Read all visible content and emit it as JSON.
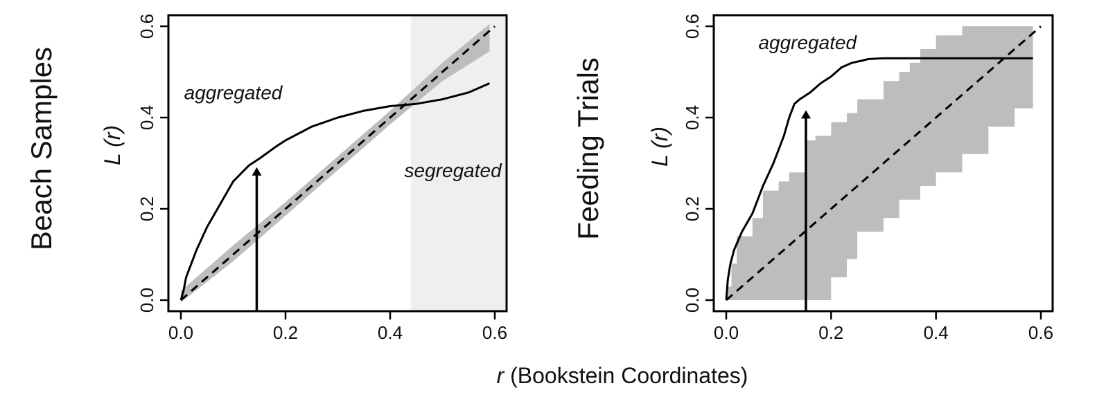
{
  "figure": {
    "xlabel_var": "r",
    "xlabel_rest": " (Bookstein Coordinates)",
    "ylabel_prefix": "L (",
    "ylabel_var": "r",
    "ylabel_suffix": ")"
  },
  "colors": {
    "line": "#000000",
    "envelope": "#bdbdbd",
    "shade": "#efefef"
  },
  "chart_data": [
    {
      "type": "line",
      "row_title": "Beach Samples",
      "xlim": [
        0,
        0.6
      ],
      "ylim": [
        0,
        0.6
      ],
      "xticks": [
        "0.0",
        "0.2",
        "0.4",
        "0.6"
      ],
      "yticks": [
        "0.0",
        "0.2",
        "0.4",
        "0.6"
      ],
      "shaded_region_x": [
        0.44,
        0.62
      ],
      "annotations": [
        {
          "text": "aggregated",
          "x": 0.1,
          "y": 0.44
        },
        {
          "text": "segregated",
          "x": 0.52,
          "y": 0.27
        }
      ],
      "arrow": {
        "x": 0.145,
        "y_from": -0.03,
        "y_to": 0.285
      },
      "series": [
        {
          "role": "observed",
          "x": [
            0,
            0.005,
            0.01,
            0.02,
            0.03,
            0.05,
            0.07,
            0.1,
            0.13,
            0.15,
            0.18,
            0.2,
            0.25,
            0.3,
            0.35,
            0.4,
            0.45,
            0.5,
            0.55,
            0.59
          ],
          "y": [
            0,
            0.02,
            0.05,
            0.08,
            0.11,
            0.16,
            0.2,
            0.26,
            0.295,
            0.31,
            0.335,
            0.35,
            0.38,
            0.4,
            0.415,
            0.425,
            0.43,
            0.44,
            0.455,
            0.475
          ]
        },
        {
          "role": "expected",
          "x": [
            0,
            0.6
          ],
          "y": [
            0,
            0.6
          ]
        },
        {
          "role": "envelope",
          "x": [
            0,
            0.1,
            0.2,
            0.3,
            0.4,
            0.5,
            0.59
          ],
          "y_lower": [
            -0.005,
            0.085,
            0.185,
            0.285,
            0.385,
            0.48,
            0.545
          ],
          "y_upper": [
            0.02,
            0.12,
            0.215,
            0.315,
            0.415,
            0.52,
            0.605
          ]
        }
      ]
    },
    {
      "type": "line",
      "row_title": "Feeding Trials",
      "xlim": [
        0,
        0.6
      ],
      "ylim": [
        0,
        0.6
      ],
      "xticks": [
        "0.0",
        "0.2",
        "0.4",
        "0.6"
      ],
      "yticks": [
        "0.0",
        "0.2",
        "0.4",
        "0.6"
      ],
      "annotations": [
        {
          "text": "aggregated",
          "x": 0.155,
          "y": 0.55
        }
      ],
      "arrow": {
        "x": 0.152,
        "y_from": -0.03,
        "y_to": 0.41
      },
      "series": [
        {
          "role": "observed",
          "x": [
            0,
            0.003,
            0.008,
            0.015,
            0.03,
            0.05,
            0.07,
            0.09,
            0.11,
            0.12,
            0.13,
            0.14,
            0.16,
            0.18,
            0.2,
            0.22,
            0.24,
            0.26,
            0.27,
            0.3,
            0.4,
            0.5,
            0.585
          ],
          "y": [
            0,
            0.045,
            0.08,
            0.11,
            0.15,
            0.19,
            0.25,
            0.3,
            0.36,
            0.4,
            0.43,
            0.44,
            0.455,
            0.475,
            0.49,
            0.51,
            0.52,
            0.525,
            0.528,
            0.53,
            0.53,
            0.53,
            0.53
          ]
        },
        {
          "role": "expected",
          "x": [
            0,
            0.6
          ],
          "y": [
            0,
            0.6
          ]
        },
        {
          "role": "envelope",
          "x": [
            0,
            0.01,
            0.02,
            0.05,
            0.07,
            0.1,
            0.12,
            0.15,
            0.17,
            0.2,
            0.23,
            0.25,
            0.3,
            0.33,
            0.35,
            0.37,
            0.4,
            0.45,
            0.5,
            0.55,
            0.585
          ],
          "y_lower": [
            0,
            0,
            0,
            0,
            0,
            0,
            0,
            0,
            0,
            0.05,
            0.09,
            0.15,
            0.18,
            0.22,
            0.22,
            0.25,
            0.28,
            0.32,
            0.38,
            0.42,
            0.45
          ],
          "y_upper": [
            0.03,
            0.08,
            0.14,
            0.18,
            0.24,
            0.26,
            0.28,
            0.35,
            0.36,
            0.39,
            0.41,
            0.44,
            0.48,
            0.5,
            0.52,
            0.55,
            0.58,
            0.6,
            0.6,
            0.6,
            0.6
          ]
        }
      ]
    }
  ]
}
